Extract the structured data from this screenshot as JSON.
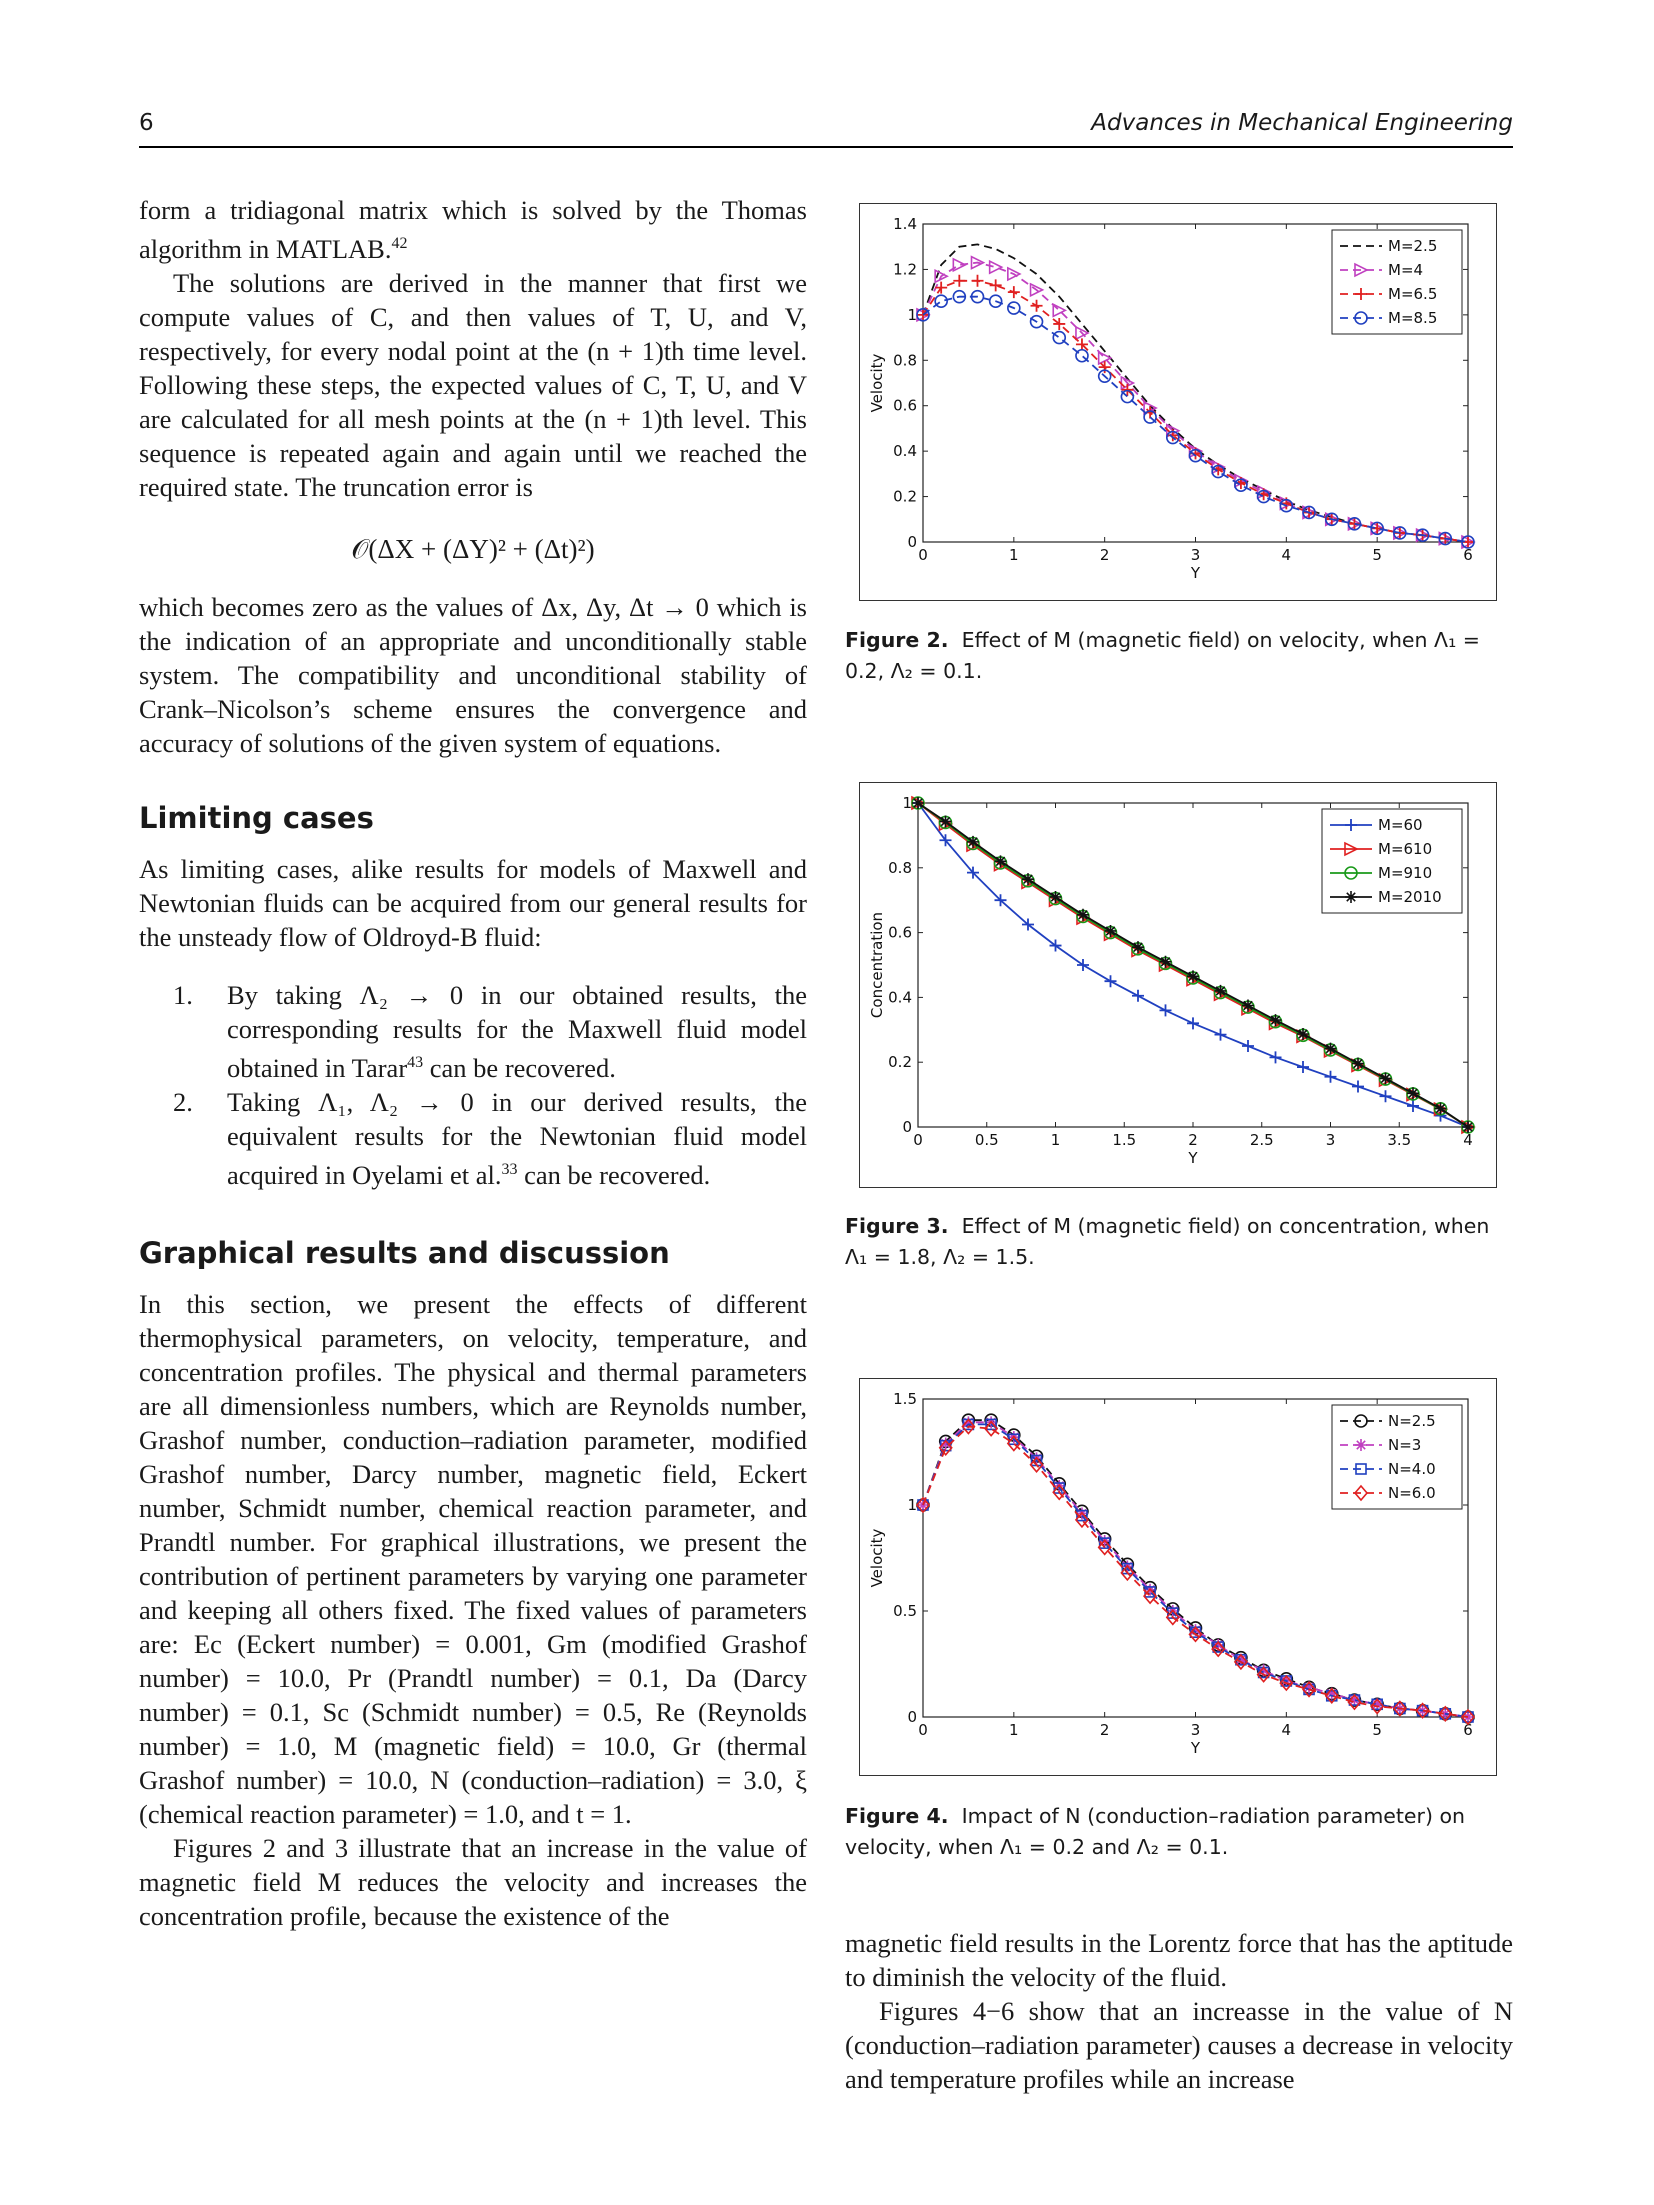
{
  "header": {
    "page_number": "6",
    "journal": "Advances in Mechanical Engineering"
  },
  "left": {
    "p1": "form a tridiagonal matrix which is solved by the Thomas algorithm in MATLAB.",
    "p1_ref": "42",
    "p2": "The solutions are derived in the manner that first we compute values of C, and then values of T, U, and V, respectively, for every nodal point at the (n + 1)th time level. Following these steps, the expected values of C, T, U, and V are calculated for all mesh points at the (n + 1)th level. This sequence is repeated again and again until we reached the required state. The truncation error is",
    "equation": "𝒪(ΔX + (ΔY)² + (Δt)²)",
    "p3": "which becomes zero as the values of Δx, Δy, Δt → 0 which is the indication of an appropriate and unconditionally stable system. The compatibility and unconditional stability of Crank–Nicolson’s scheme ensures the convergence and accuracy of solutions of the given system of equations.",
    "h_limiting": "Limiting cases",
    "p4": "As limiting cases, alike results for models of Maxwell and Newtonian fluids can be acquired from our general results for the unsteady flow of Oldroyd-B fluid:",
    "list": [
      {
        "num": "1.",
        "text": "By taking Λ₂ → 0 in our obtained results, the corresponding results for the Maxwell fluid model obtained in Tarar",
        "ref": "43",
        "tail": " can be recovered."
      },
      {
        "num": "2.",
        "text": "Taking Λ₁, Λ₂ → 0 in our derived results, the equivalent results for the Newtonian fluid model acquired in Oyelami et al.",
        "ref": "33",
        "tail": " can be recovered."
      }
    ],
    "h_graphical": "Graphical results and discussion",
    "p5": "In this section, we present the effects of different thermophysical parameters, on velocity, temperature, and concentration profiles. The physical and thermal parameters are all dimensionless numbers, which are Reynolds number, Grashof number, conduction–radiation parameter, modified Grashof number, Darcy number, magnetic field, Eckert number, Schmidt number, chemical reaction parameter, and Prandtl number. For graphical illustrations, we present the contribution of pertinent parameters by varying one parameter and keeping all others fixed. The fixed values of parameters are: Ec (Eckert number) = 0.001, Gm (modified Grashof number) = 10.0, Pr (Prandtl number) = 0.1, Da (Darcy number) = 0.1, Sc (Schmidt number) = 0.5, Re (Reynolds number) = 1.0, M (magnetic field) = 10.0, Gr (thermal Grashof number) = 10.0, N (conduction–radiation) = 3.0, ξ (chemical reaction parameter) = 1.0, and t = 1.",
    "p6": "Figures 2 and 3 illustrate that an increase in the value of magnetic field M reduces the velocity and increases the concentration profile, because the existence of the"
  },
  "right": {
    "p1": "magnetic field results in the Lorentz force that has the aptitude to diminish the velocity of the fluid.",
    "p2": "Figures 4−6 show that an increasse in the value of N (conduction–radiation parameter) causes a decrease in velocity and temperature profiles while an increase"
  },
  "captions": {
    "fig2_label": "Figure 2.",
    "fig2_text": "Effect of M (magnetic field) on velocity, when Λ₁ = 0.2, Λ₂ = 0.1.",
    "fig3_label": "Figure 3.",
    "fig3_text": "Effect of M (magnetic field) on concentration, when Λ₁ = 1.8, Λ₂ = 1.5.",
    "fig4_label": "Figure 4.",
    "fig4_text": "Impact of N (conduction–radiation parameter) on velocity, when Λ₁ = 0.2 and Λ₂ = 0.1."
  },
  "chart_data": [
    {
      "type": "line",
      "xlabel": "Y",
      "ylabel": "Velocity",
      "xlim": [
        0,
        6
      ],
      "ylim": [
        0,
        1.4
      ],
      "xticks": [
        "0",
        "1",
        "2",
        "3",
        "4",
        "5",
        "6"
      ],
      "yticks": [
        "0",
        "0.2",
        "0.4",
        "0.6",
        "0.8",
        "1",
        "1.2",
        "1.4"
      ],
      "legend": "top-right",
      "x": [
        0,
        0.2,
        0.4,
        0.6,
        0.8,
        1.0,
        1.25,
        1.5,
        1.75,
        2.0,
        2.25,
        2.5,
        2.75,
        3.0,
        3.25,
        3.5,
        3.75,
        4.0,
        4.25,
        4.5,
        4.75,
        5.0,
        5.25,
        5.5,
        5.75,
        6.0
      ],
      "series": [
        {
          "name": "M=2.5",
          "color": "#111111",
          "marker": "dot",
          "values": [
            1.0,
            1.22,
            1.3,
            1.31,
            1.29,
            1.25,
            1.18,
            1.08,
            0.96,
            0.84,
            0.72,
            0.6,
            0.5,
            0.41,
            0.34,
            0.28,
            0.23,
            0.18,
            0.14,
            0.11,
            0.08,
            0.06,
            0.04,
            0.03,
            0.015,
            0.0
          ]
        },
        {
          "name": "M=4",
          "color": "#c040c0",
          "marker": "triangle",
          "values": [
            1.0,
            1.17,
            1.22,
            1.23,
            1.21,
            1.18,
            1.11,
            1.02,
            0.92,
            0.81,
            0.7,
            0.59,
            0.49,
            0.4,
            0.33,
            0.27,
            0.22,
            0.17,
            0.13,
            0.1,
            0.08,
            0.06,
            0.04,
            0.03,
            0.015,
            0.0
          ]
        },
        {
          "name": "M=6.5",
          "color": "#e02020",
          "marker": "plus",
          "values": [
            1.0,
            1.12,
            1.15,
            1.15,
            1.13,
            1.1,
            1.04,
            0.96,
            0.87,
            0.77,
            0.67,
            0.57,
            0.47,
            0.39,
            0.32,
            0.26,
            0.21,
            0.17,
            0.13,
            0.1,
            0.08,
            0.06,
            0.04,
            0.03,
            0.015,
            0.0
          ]
        },
        {
          "name": "M=8.5",
          "color": "#2040c0",
          "marker": "circle",
          "values": [
            1.0,
            1.06,
            1.08,
            1.08,
            1.06,
            1.03,
            0.97,
            0.9,
            0.82,
            0.73,
            0.64,
            0.55,
            0.46,
            0.38,
            0.31,
            0.25,
            0.2,
            0.16,
            0.13,
            0.1,
            0.08,
            0.06,
            0.04,
            0.03,
            0.015,
            0.0
          ]
        }
      ]
    },
    {
      "type": "line",
      "xlabel": "Y",
      "ylabel": "Concentration",
      "xlim": [
        0,
        4
      ],
      "ylim": [
        0,
        1
      ],
      "xticks": [
        "0",
        "0.5",
        "1",
        "1.5",
        "2",
        "2.5",
        "3",
        "3.5",
        "4"
      ],
      "yticks": [
        "0",
        "0.2",
        "0.4",
        "0.6",
        "0.8",
        "1"
      ],
      "legend": "top-right",
      "x": [
        0,
        0.2,
        0.4,
        0.6,
        0.8,
        1.0,
        1.2,
        1.4,
        1.6,
        1.8,
        2.0,
        2.2,
        2.4,
        2.6,
        2.8,
        3.0,
        3.2,
        3.4,
        3.6,
        3.8,
        4.0
      ],
      "series": [
        {
          "name": "M=60",
          "color": "#2040c0",
          "marker": "plus",
          "values": [
            1.0,
            0.885,
            0.785,
            0.7,
            0.625,
            0.56,
            0.5,
            0.45,
            0.405,
            0.36,
            0.32,
            0.285,
            0.25,
            0.215,
            0.185,
            0.155,
            0.125,
            0.095,
            0.065,
            0.035,
            0.0
          ]
        },
        {
          "name": "M=610",
          "color": "#e02020",
          "marker": "triangle",
          "values": [
            1.0,
            0.935,
            0.87,
            0.81,
            0.755,
            0.7,
            0.645,
            0.595,
            0.545,
            0.5,
            0.455,
            0.41,
            0.365,
            0.32,
            0.28,
            0.235,
            0.19,
            0.145,
            0.1,
            0.055,
            0.0
          ]
        },
        {
          "name": "M=910",
          "color": "#1a9a1a",
          "marker": "circle",
          "values": [
            1.0,
            0.94,
            0.875,
            0.815,
            0.76,
            0.705,
            0.65,
            0.6,
            0.55,
            0.505,
            0.46,
            0.415,
            0.37,
            0.325,
            0.283,
            0.238,
            0.193,
            0.148,
            0.102,
            0.056,
            0.0
          ]
        },
        {
          "name": "M=2010",
          "color": "#111111",
          "marker": "star",
          "values": [
            1.0,
            0.943,
            0.88,
            0.82,
            0.765,
            0.71,
            0.655,
            0.605,
            0.555,
            0.51,
            0.465,
            0.42,
            0.375,
            0.33,
            0.287,
            0.242,
            0.196,
            0.15,
            0.104,
            0.057,
            0.0
          ]
        }
      ]
    },
    {
      "type": "line",
      "xlabel": "Y",
      "ylabel": "Velocity",
      "xlim": [
        0,
        6
      ],
      "ylim": [
        0,
        1.5
      ],
      "xticks": [
        "0",
        "1",
        "2",
        "3",
        "4",
        "5",
        "6"
      ],
      "yticks": [
        "0",
        "0.5",
        "1",
        "1.5"
      ],
      "legend": "top-right",
      "x": [
        0,
        0.25,
        0.5,
        0.75,
        1.0,
        1.25,
        1.5,
        1.75,
        2.0,
        2.25,
        2.5,
        2.75,
        3.0,
        3.25,
        3.5,
        3.75,
        4.0,
        4.25,
        4.5,
        4.75,
        5.0,
        5.25,
        5.5,
        5.75,
        6.0
      ],
      "series": [
        {
          "name": "N=2.5",
          "color": "#111111",
          "marker": "circle",
          "values": [
            1.0,
            1.3,
            1.4,
            1.4,
            1.33,
            1.23,
            1.1,
            0.97,
            0.84,
            0.72,
            0.61,
            0.51,
            0.42,
            0.34,
            0.28,
            0.22,
            0.18,
            0.14,
            0.11,
            0.08,
            0.06,
            0.04,
            0.03,
            0.015,
            0.0
          ]
        },
        {
          "name": "N=3",
          "color": "#c040c0",
          "marker": "star",
          "values": [
            1.0,
            1.29,
            1.39,
            1.39,
            1.32,
            1.22,
            1.09,
            0.96,
            0.83,
            0.71,
            0.6,
            0.5,
            0.41,
            0.34,
            0.27,
            0.22,
            0.17,
            0.14,
            0.11,
            0.08,
            0.06,
            0.04,
            0.03,
            0.015,
            0.0
          ]
        },
        {
          "name": "N=4.0",
          "color": "#2040c0",
          "marker": "square",
          "values": [
            1.0,
            1.28,
            1.38,
            1.38,
            1.31,
            1.21,
            1.08,
            0.95,
            0.82,
            0.7,
            0.59,
            0.49,
            0.4,
            0.33,
            0.27,
            0.21,
            0.17,
            0.13,
            0.1,
            0.08,
            0.06,
            0.04,
            0.03,
            0.015,
            0.0
          ]
        },
        {
          "name": "N=6.0",
          "color": "#e02020",
          "marker": "diamond",
          "values": [
            1.0,
            1.27,
            1.37,
            1.36,
            1.29,
            1.19,
            1.06,
            0.93,
            0.8,
            0.68,
            0.57,
            0.47,
            0.39,
            0.32,
            0.26,
            0.2,
            0.16,
            0.13,
            0.1,
            0.07,
            0.05,
            0.04,
            0.03,
            0.015,
            0.0
          ]
        }
      ]
    }
  ]
}
